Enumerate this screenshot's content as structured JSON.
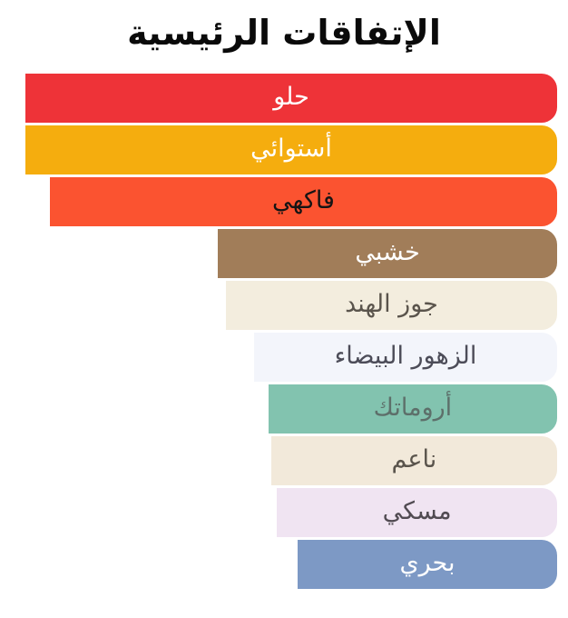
{
  "title": "الإتفاقات الرئيسية",
  "chart_data": {
    "type": "bar",
    "orientation": "horizontal",
    "direction": "rtl",
    "title": "الإتفاقات الرئيسية",
    "categories": [
      "حلو",
      "أستوائي",
      "فاكهي",
      "خشبي",
      "جوز الهند",
      "الزهور البيضاء",
      "أروماتك",
      "ناعم",
      "مسكي",
      "بحري"
    ],
    "values": [
      100,
      100,
      95.4,
      63.8,
      62.3,
      57.0,
      54.3,
      53.8,
      52.7,
      48.8
    ],
    "value_unit": "percent of widest bar",
    "legend": "none",
    "grid": "off",
    "bars": [
      {
        "label": "حلو",
        "value": 100,
        "color": "#ee3338",
        "text_color": "#ffffff"
      },
      {
        "label": "أستوائي",
        "value": 100,
        "color": "#f5ad0e",
        "text_color": "#ffffff"
      },
      {
        "label": "فاكهي",
        "value": 95.4,
        "color": "#fb5330",
        "text_color": "#141414"
      },
      {
        "label": "خشبي",
        "value": 63.8,
        "color": "#a17d59",
        "text_color": "#ffffff"
      },
      {
        "label": "جوز الهند",
        "value": 62.3,
        "color": "#f3edde",
        "text_color": "#5a544c"
      },
      {
        "label": "الزهور البيضاء",
        "value": 57.0,
        "color": "#f3f5fb",
        "text_color": "#4c4c58"
      },
      {
        "label": "أروماتك",
        "value": 54.3,
        "color": "#82c3af",
        "text_color": "#5d6f6a"
      },
      {
        "label": "ناعم",
        "value": 53.8,
        "color": "#f2e9da",
        "text_color": "#5a544c"
      },
      {
        "label": "مسكي",
        "value": 52.7,
        "color": "#f0e4f2",
        "text_color": "#514b52"
      },
      {
        "label": "بحري",
        "value": 48.8,
        "color": "#7d99c5",
        "text_color": "#ffffff"
      }
    ]
  }
}
